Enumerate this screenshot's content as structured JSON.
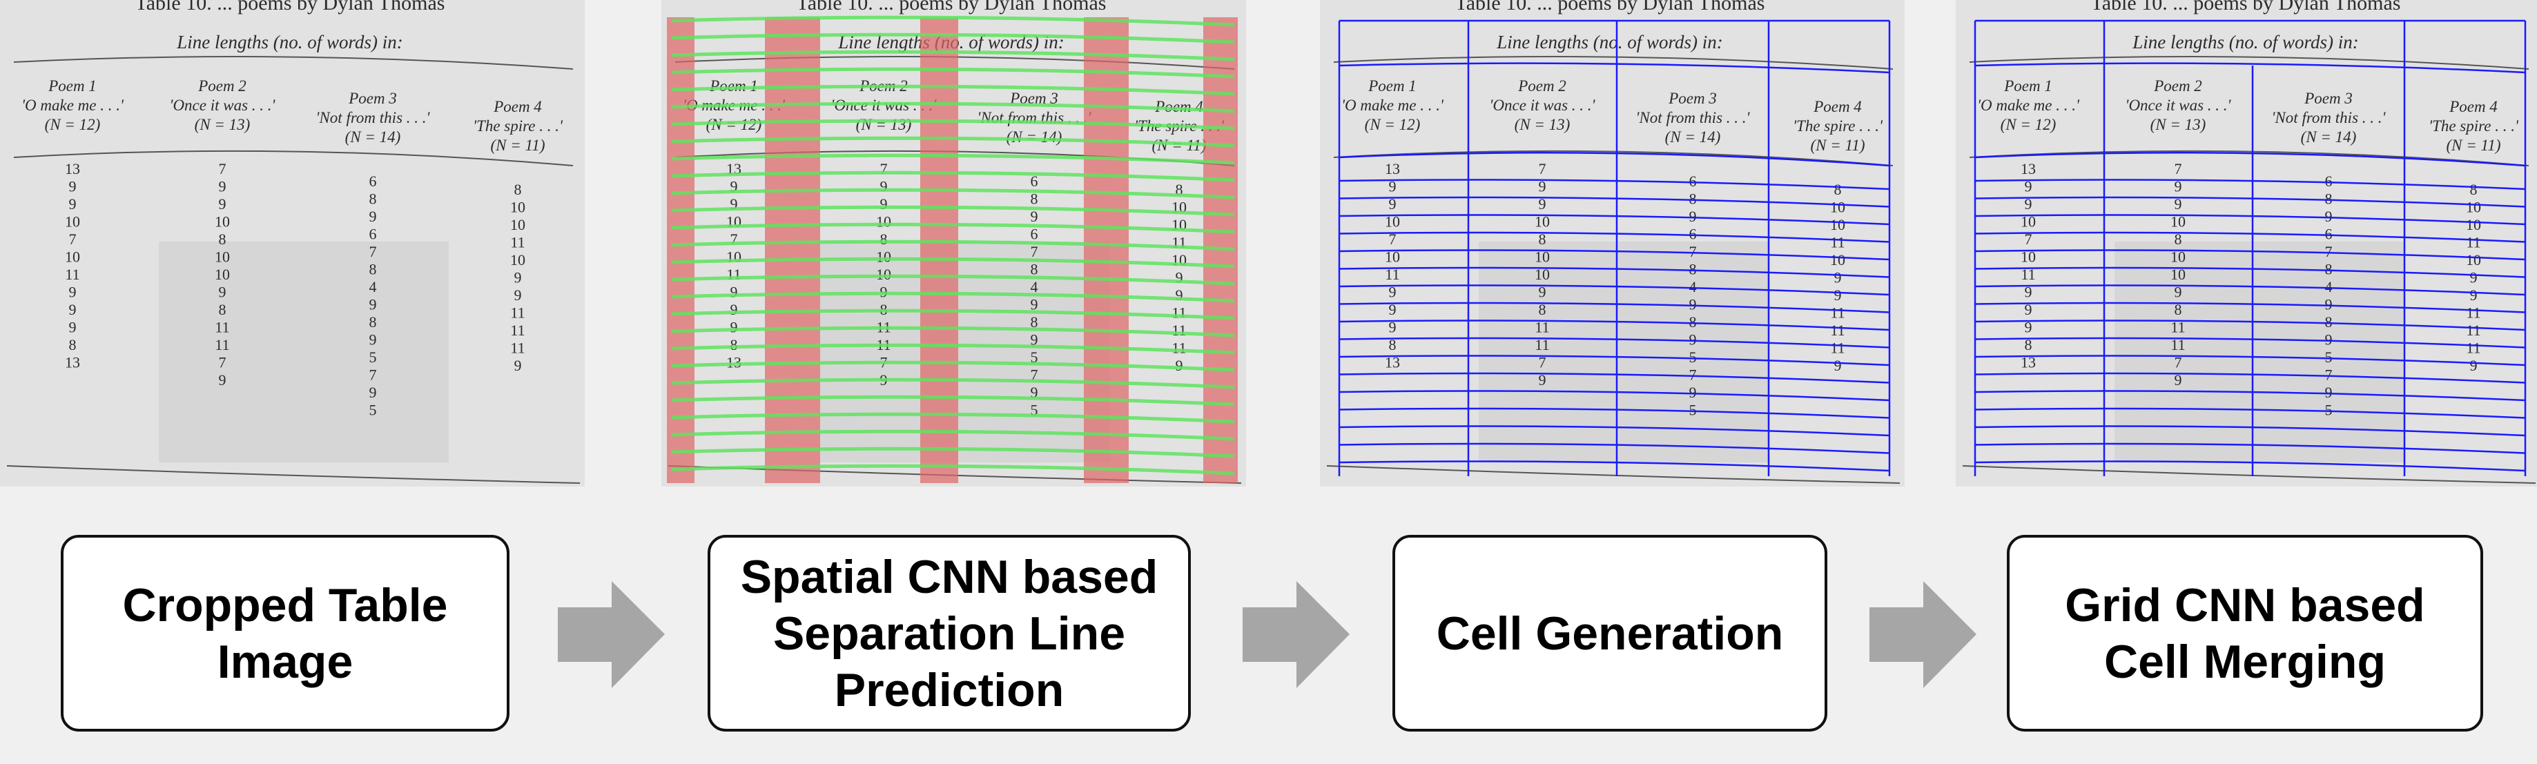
{
  "steps": [
    {
      "label": "Cropped Table\nImage"
    },
    {
      "label": "Spatial CNN based\nSeparation Line\nPrediction"
    },
    {
      "label": "Cell Generation"
    },
    {
      "label": "Grid CNN based\nCell Merging"
    }
  ],
  "scanned_table": {
    "caption": "Table 10. ... poems by Dylan Thomas",
    "header": "Line lengths (no. of words) in:",
    "columns": [
      {
        "title": "Poem 1",
        "first_line": "'O make me . . .'",
        "n": "(N = 12)"
      },
      {
        "title": "Poem 2",
        "first_line": "'Once it was . . .'",
        "n": "(N = 13)"
      },
      {
        "title": "Poem 3",
        "first_line": "'Not from this . . .'",
        "n": "(N = 14)"
      },
      {
        "title": "Poem 4",
        "first_line": "'The spire . . .'",
        "n": "(N = 11)"
      }
    ],
    "values": [
      [
        "13",
        "9",
        "9",
        "10",
        "7",
        "10",
        "11",
        "9",
        "9",
        "9",
        "8",
        "13"
      ],
      [
        "7",
        "9",
        "9",
        "10",
        "8",
        "10",
        "10",
        "9",
        "8",
        "11",
        "11",
        "7",
        "9"
      ],
      [
        "6",
        "8",
        "9",
        "6",
        "7",
        "8",
        "4",
        "9",
        "8",
        "9",
        "5",
        "7",
        "9",
        "5"
      ],
      [
        "8",
        "10",
        "10",
        "11",
        "10",
        "9",
        "9",
        "11",
        "11",
        "11",
        "9"
      ]
    ]
  },
  "colors": {
    "row_separator": "#5fe35f",
    "column_separator": "#e06666",
    "cell_grid": "#1a1aff",
    "arrow": "#a6a6a6"
  }
}
